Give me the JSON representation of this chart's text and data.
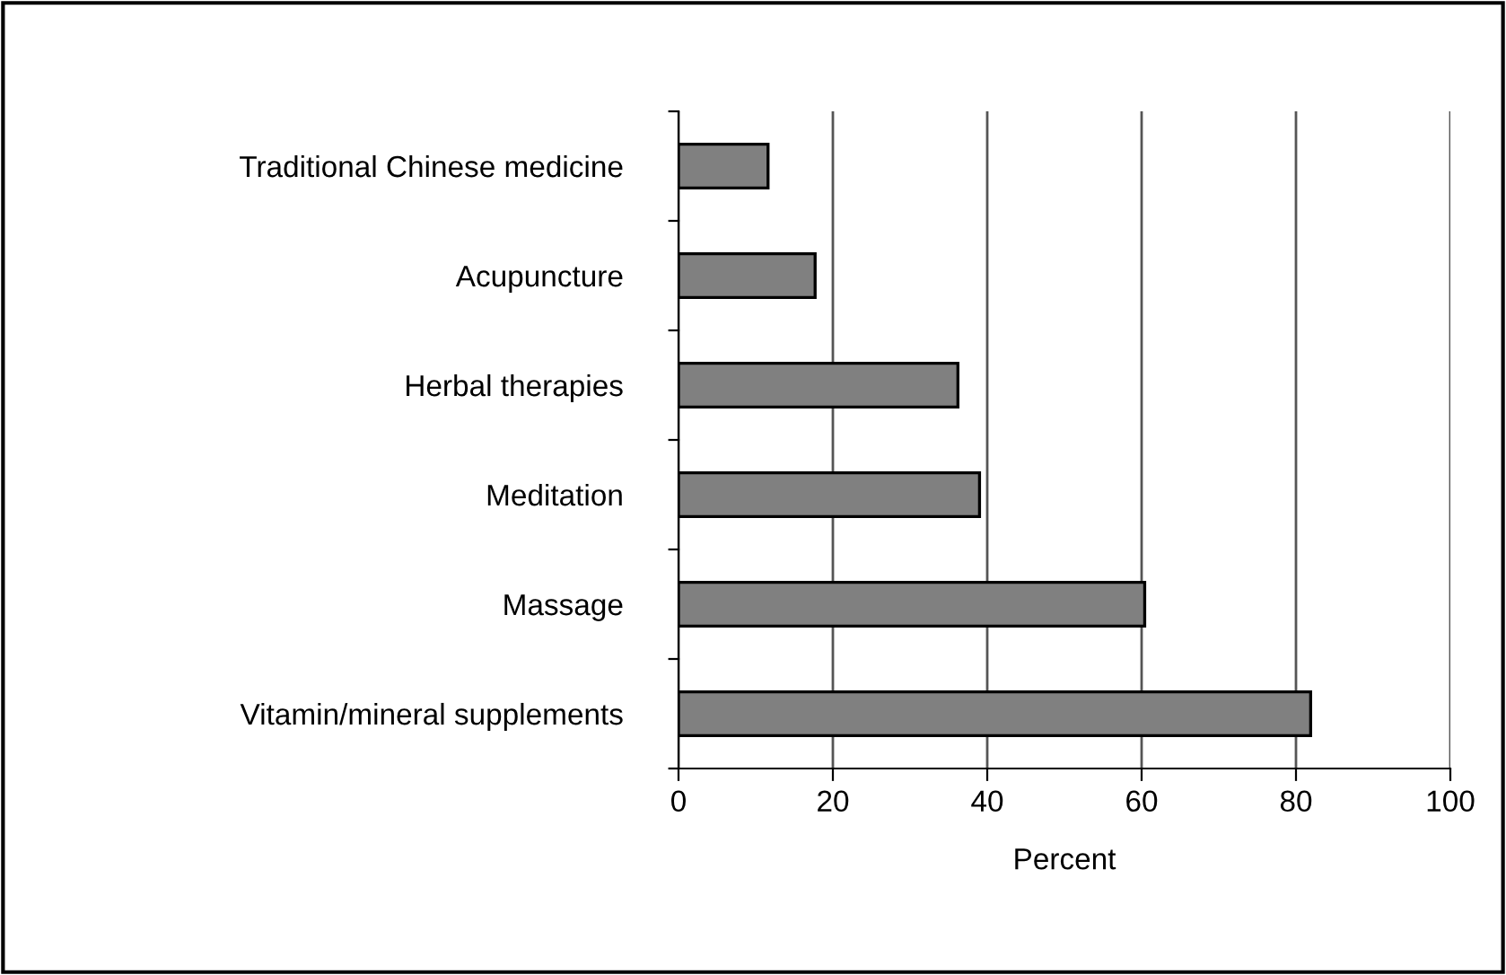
{
  "chart_data": {
    "type": "bar",
    "orientation": "horizontal",
    "xlabel": "Percent",
    "categories": [
      "Traditional Chinese medicine",
      "Acupuncture",
      "Herbal therapies",
      "Meditation",
      "Massage",
      "Vitamin/mineral supplements"
    ],
    "values": [
      11.6,
      17.7,
      36.2,
      39.0,
      60.4,
      81.9
    ],
    "color": "#808080",
    "xlim": [
      0,
      100
    ],
    "xticks": [
      0,
      20,
      40,
      60,
      80,
      100
    ],
    "grid": "x"
  }
}
